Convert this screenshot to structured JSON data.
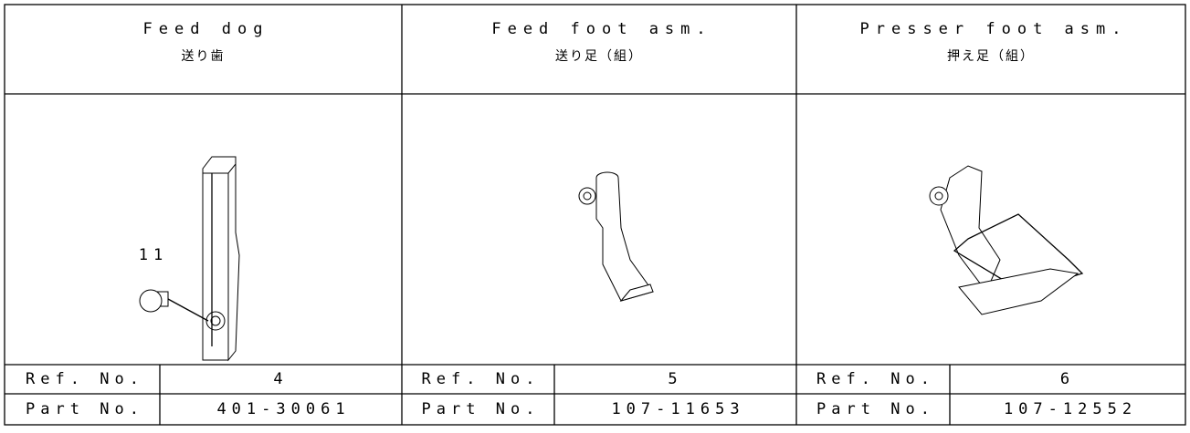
{
  "columns": [
    {
      "title": "Feed dog",
      "subtitle": "送り歯",
      "ref_label": "Ref. No.",
      "ref": "4",
      "part_label": "Part No.",
      "part": "401-30061",
      "callout": "11"
    },
    {
      "title": "Feed foot asm.",
      "subtitle": "送り足（組）",
      "ref_label": "Ref. No.",
      "ref": "5",
      "part_label": "Part No.",
      "part": "107-11653"
    },
    {
      "title": "Presser foot asm.",
      "subtitle": "押え足（組）",
      "ref_label": "Ref. No.",
      "ref": "6",
      "part_label": "Part No.",
      "part": "107-12552"
    }
  ]
}
